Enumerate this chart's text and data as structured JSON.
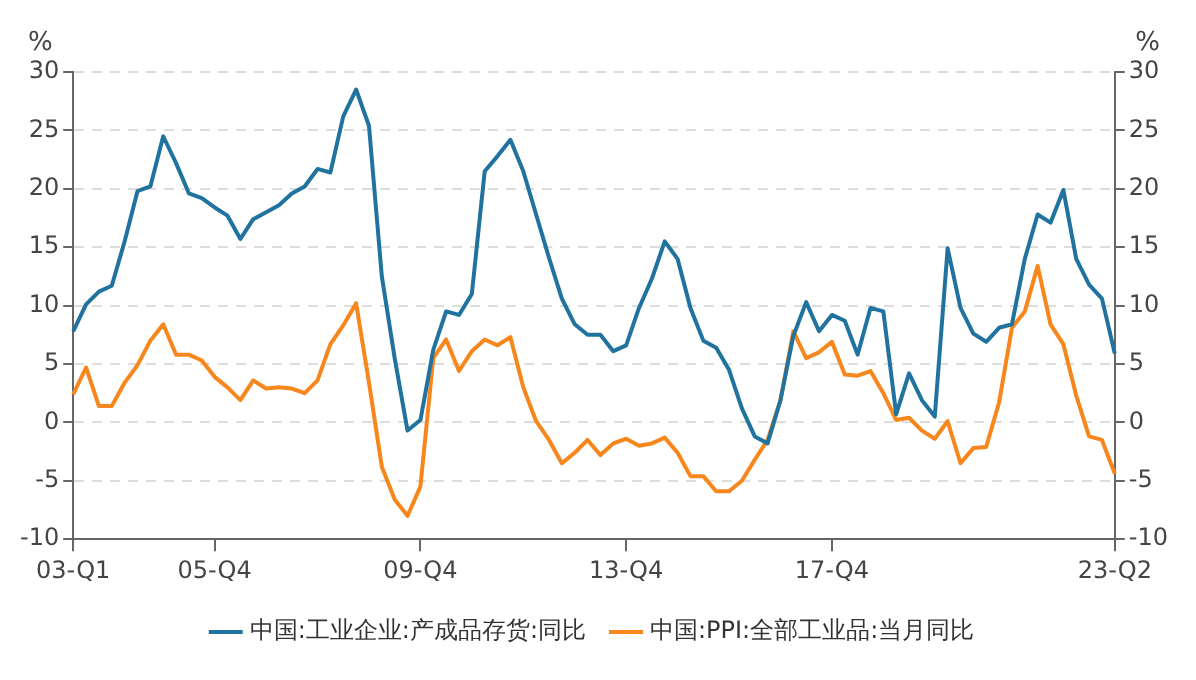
{
  "chart_data": {
    "type": "line",
    "ylabel": "%",
    "y2label": "%",
    "categories": [
      "03-Q1",
      null,
      null,
      null,
      null,
      null,
      null,
      null,
      null,
      null,
      null,
      "05-Q4",
      null,
      null,
      null,
      null,
      null,
      null,
      null,
      null,
      null,
      null,
      null,
      null,
      null,
      null,
      null,
      "09-Q4",
      null,
      null,
      null,
      null,
      null,
      null,
      null,
      null,
      null,
      null,
      null,
      null,
      null,
      null,
      null,
      "13-Q4",
      null,
      null,
      null,
      null,
      null,
      null,
      null,
      null,
      null,
      null,
      null,
      null,
      null,
      null,
      null,
      "17-Q4",
      null,
      null,
      null,
      null,
      null,
      null,
      null,
      null,
      null,
      null,
      null,
      null,
      null,
      null,
      null,
      null,
      null,
      null,
      null,
      null,
      null,
      "23-Q2"
    ],
    "ylim": [
      -10,
      30
    ],
    "yticks": [
      -10,
      -5,
      0,
      5,
      10,
      15,
      20,
      25,
      30
    ],
    "y2lim": [
      -10,
      30
    ],
    "y2ticks": [
      -10,
      -5,
      0,
      5,
      10,
      15,
      20,
      25,
      30
    ],
    "grid": "y",
    "legend": "bottom",
    "marker": "none",
    "line_style": "solid",
    "series": [
      {
        "name": "中国:工业企业:产成品存货:同比",
        "color": "#21739f",
        "values": [
          7.8,
          10.1,
          11.2,
          11.7,
          15.5,
          19.8,
          20.2,
          24.5,
          22.2,
          19.6,
          19.2,
          18.4,
          17.7,
          15.7,
          17.4,
          18.0,
          18.6,
          19.6,
          20.2,
          21.7,
          21.4,
          26.2,
          28.5,
          25.4,
          12.5,
          5.5,
          -0.7,
          0.2,
          6.2,
          9.5,
          9.2,
          11.0,
          21.5,
          22.8,
          24.2,
          21.5,
          17.8,
          14.1,
          10.6,
          8.4,
          7.5,
          7.5,
          6.1,
          6.6,
          9.8,
          12.3,
          15.5,
          14.0,
          9.8,
          7.0,
          6.4,
          4.5,
          1.2,
          -1.2,
          -1.8,
          1.9,
          7.4,
          10.3,
          7.8,
          9.2,
          8.7,
          5.8,
          9.8,
          9.5,
          0.7,
          4.2,
          1.9,
          0.5,
          14.9,
          9.8,
          7.6,
          6.9,
          8.1,
          8.4,
          14.0,
          17.8,
          17.1,
          19.9,
          14.0,
          11.8,
          10.6,
          5.9
        ]
      },
      {
        "name": "中国:PPI:全部工业品:当月同比",
        "color": "#f7871d",
        "values": [
          2.4,
          4.7,
          1.4,
          1.4,
          3.4,
          4.9,
          7.0,
          8.4,
          5.8,
          5.8,
          5.3,
          3.9,
          3.0,
          1.9,
          3.6,
          2.9,
          3.0,
          2.9,
          2.5,
          3.6,
          6.7,
          8.3,
          10.2,
          3.4,
          -3.8,
          -6.6,
          -8.0,
          -5.5,
          5.5,
          7.1,
          4.4,
          6.1,
          7.1,
          6.6,
          7.3,
          3.0,
          0.1,
          -1.5,
          -3.5,
          -2.6,
          -1.5,
          -2.8,
          -1.8,
          -1.4,
          -2.0,
          -1.8,
          -1.3,
          -2.6,
          -4.6,
          -4.6,
          -5.9,
          -5.9,
          -5.0,
          -3.2,
          -1.5,
          1.9,
          7.8,
          5.5,
          6.0,
          6.9,
          4.1,
          4.0,
          4.4,
          2.5,
          0.2,
          0.4,
          -0.7,
          -1.4,
          0.1,
          -3.5,
          -2.2,
          -2.1,
          1.7,
          8.1,
          9.5,
          13.4,
          8.4,
          6.7,
          2.3,
          -1.2,
          -1.5,
          -4.4
        ]
      }
    ]
  }
}
